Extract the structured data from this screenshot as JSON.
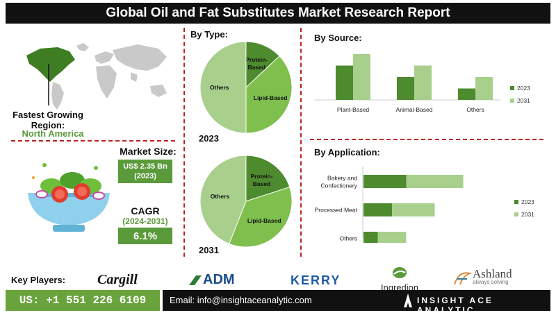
{
  "title": "Global Oil and Fat Substitutes Market Research Report",
  "region": {
    "label_line1": "Fastest Growing",
    "label_line2": "Region:",
    "value": "North America"
  },
  "market_size": {
    "label": "Market Size:",
    "value_line1": "US$ 2.35 Bn",
    "value_line2": "(2023)"
  },
  "cagr": {
    "label": "CAGR",
    "period": "(2024-2031)",
    "value": "6.1%"
  },
  "key_players": {
    "label": "Key Players:",
    "logos": [
      "Cargill",
      "ADM",
      "KERRY",
      "Ingredion",
      "Ashland",
      "always solving"
    ]
  },
  "footer": {
    "phone": "US: +1 551 226 6109",
    "email": "Email: info@insightaceanalytic.com",
    "brand": "INSIGHT ACE ANALYTIC"
  },
  "colors": {
    "dark_green": "#4e8b2e",
    "light_green": "#a8cf8c",
    "mid_green": "#7fbf4d",
    "divider_red": "#b22222"
  },
  "icons": [
    "world-map-icon",
    "salad-bowl-icon",
    "ingredion-leaf-icon",
    "ashland-flourish-icon",
    "insight-ace-logo-icon"
  ],
  "chart_data": [
    {
      "type": "pie",
      "title": "By Type:",
      "year": "2023",
      "slices": [
        {
          "label": "Protein-Based",
          "value": 13,
          "color": "#4e8b2e"
        },
        {
          "label": "Lipid-Based",
          "value": 37,
          "color": "#7fbf4d"
        },
        {
          "label": "Others",
          "value": 50,
          "color": "#a8cf8c"
        }
      ]
    },
    {
      "type": "pie",
      "year": "2031",
      "slices": [
        {
          "label": "Protein-Based",
          "value": 20,
          "color": "#4e8b2e"
        },
        {
          "label": "Lipid-Based",
          "value": 36,
          "color": "#7fbf4d"
        },
        {
          "label": "Others",
          "value": 44,
          "color": "#a8cf8c"
        }
      ]
    },
    {
      "type": "bar",
      "title": "By Source:",
      "categories": [
        "Plant-Based",
        "Animal-Based",
        "Others"
      ],
      "series": [
        {
          "name": "2023",
          "values": [
            3,
            2,
            1
          ],
          "color": "#4e8b2e"
        },
        {
          "name": "2031",
          "values": [
            4,
            3,
            2
          ],
          "color": "#a8cf8c"
        }
      ],
      "legend": "right"
    },
    {
      "type": "bar",
      "orientation": "horizontal-stacked",
      "title": "By Application:",
      "categories": [
        "Bakery and Confectionery",
        "Processed Meat",
        "Others"
      ],
      "series": [
        {
          "name": "2023",
          "values": [
            3,
            2,
            1
          ],
          "color": "#4e8b2e"
        },
        {
          "name": "2031",
          "values": [
            4,
            3,
            2
          ],
          "color": "#a8cf8c"
        }
      ],
      "legend": "right"
    }
  ]
}
